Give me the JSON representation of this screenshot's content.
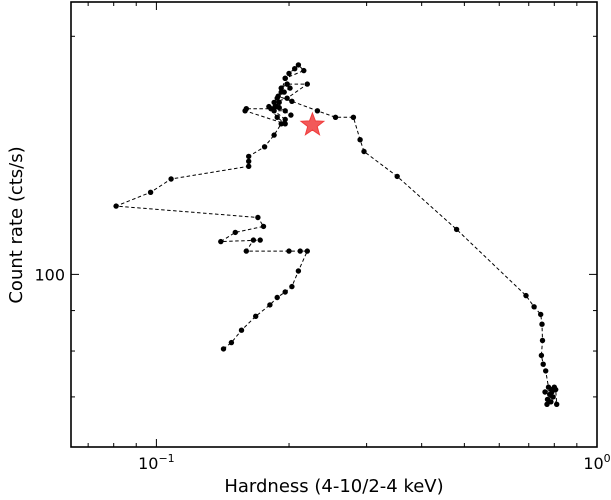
{
  "chart_data": {
    "type": "line",
    "xlabel": "Hardness (4-10/2-4 keV)",
    "ylabel": "Count rate (cts/s)",
    "xscale": "log",
    "yscale": "log",
    "xlim": [
      0.064,
      1.0
    ],
    "ylim": [
      60.5,
      221
    ],
    "x_tick_labels": [
      {
        "value": 0.1,
        "base": "10",
        "exp": "−1"
      },
      {
        "value": 1.0,
        "base": "10",
        "exp": "0"
      }
    ],
    "y_tick_labels": [
      {
        "value": 100,
        "text": "100"
      }
    ],
    "grid": false,
    "line_style": "dashed",
    "marker_color": "#000000",
    "series": [
      {
        "x": [
          0.142,
          0.148,
          0.156,
          0.168,
          0.181,
          0.188,
          0.196,
          0.203,
          0.21,
          0.22,
          0.212,
          0.2,
          0.16,
          0.166,
          0.172,
          0.14,
          0.151,
          0.175,
          0.17,
          0.081,
          0.097,
          0.108,
          0.162,
          0.162,
          0.162,
          0.176,
          0.185,
          0.192,
          0.196,
          0.18,
          0.188,
          0.196,
          0.159,
          0.16,
          0.182,
          0.19,
          0.187,
          0.185,
          0.196,
          0.202,
          0.19,
          0.186,
          0.185,
          0.198,
          0.22,
          0.198,
          0.192,
          0.188,
          0.192,
          0.196,
          0.2,
          0.206,
          0.21,
          0.216,
          0.196,
          0.198,
          0.201,
          0.195,
          0.189,
          0.203,
          0.232,
          0.255,
          0.28,
          0.29,
          0.296,
          0.352,
          0.48,
          0.69,
          0.72,
          0.745,
          0.75,
          0.752,
          0.748,
          0.755,
          0.765,
          0.776,
          0.79,
          0.762,
          0.781,
          0.795,
          0.772,
          0.786,
          0.77,
          0.8,
          0.806,
          0.81,
          0.79
        ],
        "y": [
          80.5,
          82.0,
          85.0,
          88.5,
          91.5,
          93.5,
          95.0,
          96.5,
          101.0,
          107.0,
          107.0,
          107.0,
          107.0,
          110.5,
          110.5,
          110.0,
          113.0,
          115.0,
          118.0,
          122.0,
          127.0,
          132.0,
          137.0,
          139.0,
          141.0,
          145.0,
          150.0,
          155.0,
          157.0,
          163.0,
          158.0,
          155.0,
          161.0,
          162.0,
          162.0,
          165.0,
          163.0,
          161.0,
          161.0,
          159.0,
          162.5,
          163.0,
          165.0,
          167.0,
          174.0,
          174.0,
          172.0,
          167.0,
          170.0,
          177.0,
          179.5,
          182.0,
          184.0,
          181.0,
          177.0,
          174.0,
          172.0,
          170.0,
          168.0,
          165.5,
          161.0,
          158.0,
          158.0,
          148.0,
          143.0,
          133.0,
          114.0,
          94.0,
          91.0,
          89.0,
          86.5,
          82.5,
          79.0,
          77.0,
          75.5,
          72.0,
          71.5,
          71.0,
          70.5,
          70.0,
          69.5,
          69.0,
          68.5,
          72.0,
          71.5,
          68.5,
          71.0
        ]
      }
    ],
    "highlight": {
      "x": 0.226,
      "y": 154.5,
      "marker": "star",
      "color": "#f03c3c"
    }
  }
}
